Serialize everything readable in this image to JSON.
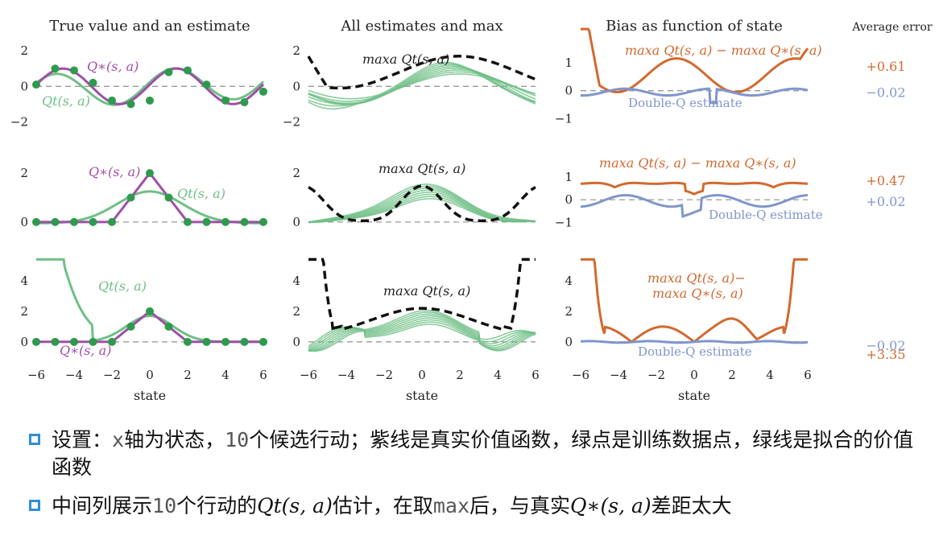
{
  "chart_data": {
    "type": "line",
    "column_titles": [
      "True value and an estimate",
      "All estimates and max",
      "Bias as function of state"
    ],
    "average_error_title": "Average error",
    "xlabel": "state",
    "xlim": [
      -6,
      6
    ],
    "xticks": [
      "−6",
      "−4",
      "−2",
      "0",
      "2",
      "4",
      "6"
    ],
    "rows": [
      {
        "true_label": "Q∗(s, a)",
        "estimate_label": "Qt(s, a)",
        "max_label": "maxa Qt(s, a)",
        "bias_label": "maxa Qt(s, a) − maxa Q∗(s, a)",
        "double_q_label": "Double-Q estimate",
        "yticks_left": [
          "2",
          "0",
          "−2"
        ],
        "yticks_mid": [
          "2",
          "0",
          "−2"
        ],
        "yticks_bias": [
          "1",
          "0",
          "−1"
        ],
        "ylim_left": [
          -2.3,
          2.6
        ],
        "ylim_bias": [
          -1.3,
          1.8
        ],
        "avg_error_q": "+0.61",
        "avg_error_double": "−0.02",
        "sample_points": [
          [
            -6,
            0.1
          ],
          [
            -5,
            1.0
          ],
          [
            -4,
            0.9
          ],
          [
            -3,
            0.2
          ],
          [
            -2,
            -0.8
          ],
          [
            -1,
            -1.0
          ],
          [
            0,
            -0.8
          ],
          [
            1,
            0.8
          ],
          [
            2,
            0.9
          ],
          [
            3,
            0.1
          ],
          [
            4,
            -0.8
          ],
          [
            5,
            -0.9
          ],
          [
            6,
            -0.3
          ]
        ]
      },
      {
        "true_label": "Q∗(s, a)",
        "estimate_label": "Qt(s, a)",
        "max_label": "maxa Qt(s, a)",
        "bias_label": "maxa Qt(s, a) − maxa Q∗(s, a)",
        "double_q_label": "Double-Q estimate",
        "yticks_left": [
          "2",
          "0"
        ],
        "yticks_mid": [
          "2",
          "0"
        ],
        "yticks_bias": [
          "1",
          "0",
          "−1"
        ],
        "ylim_left": [
          -0.3,
          2.4
        ],
        "ylim_bias": [
          -1.3,
          1.6
        ],
        "avg_error_q": "+0.47",
        "avg_error_double": "+0.02",
        "sample_points": [
          [
            -6,
            0
          ],
          [
            -5,
            0
          ],
          [
            -4,
            0
          ],
          [
            -3,
            0
          ],
          [
            -2,
            0
          ],
          [
            -1,
            1
          ],
          [
            0,
            2
          ],
          [
            1,
            1
          ],
          [
            2,
            0
          ],
          [
            3,
            0
          ],
          [
            4,
            0
          ],
          [
            5,
            0
          ],
          [
            6,
            0
          ]
        ]
      },
      {
        "true_label": "Q∗(s, a)",
        "estimate_label": "Qt(s, a)",
        "max_label": "maxa Qt(s, a)",
        "bias_label_line1": "maxa Qt(s, a)−",
        "bias_label_line2": "maxa Q∗(s, a)",
        "double_q_label": "Double-Q estimate",
        "yticks_left": [
          "4",
          "2",
          "0"
        ],
        "yticks_mid": [
          "4",
          "2",
          "0"
        ],
        "yticks_bias": [
          "4",
          "2",
          "0"
        ],
        "ylim_left": [
          -0.8,
          5.0
        ],
        "ylim_bias": [
          -0.8,
          5.0
        ],
        "avg_error_q": "+3.35",
        "avg_error_double": "−0.02",
        "sample_points": [
          [
            -6,
            0
          ],
          [
            -5,
            0
          ],
          [
            -4,
            0
          ],
          [
            -3,
            0
          ],
          [
            -2,
            0
          ],
          [
            -1,
            1
          ],
          [
            0,
            2
          ],
          [
            1,
            1
          ],
          [
            2,
            0
          ],
          [
            3,
            0
          ],
          [
            4,
            0
          ],
          [
            5,
            0
          ],
          [
            6,
            0
          ]
        ]
      }
    ]
  },
  "bullets": {
    "b1_part1": "设置：",
    "b1_mono1": "x",
    "b1_part2": "轴为状态，",
    "b1_mono2": "10",
    "b1_part3": "个候选行动；紫线是真实价值函数，绿点是训练数据点，绿线是拟合的价值函数",
    "b2_part1": "中间列展示",
    "b2_mono1": "10",
    "b2_part2": "个行动的",
    "b2_math1": "Qt(s, a)",
    "b2_part3": "估计，在取",
    "b2_mono2": "max",
    "b2_part4": "后，与真实",
    "b2_math2": "Q∗(s, a)",
    "b2_part5": "差距太大"
  },
  "colors": {
    "true_value": "#a04ea8",
    "estimate": "#6fbf86",
    "points": "#2e9a4e",
    "max": "#111111",
    "bias": "#d2692f",
    "double_q": "#7f96cc",
    "reference": "#999999",
    "bullet_square": "#2f8fd8"
  }
}
